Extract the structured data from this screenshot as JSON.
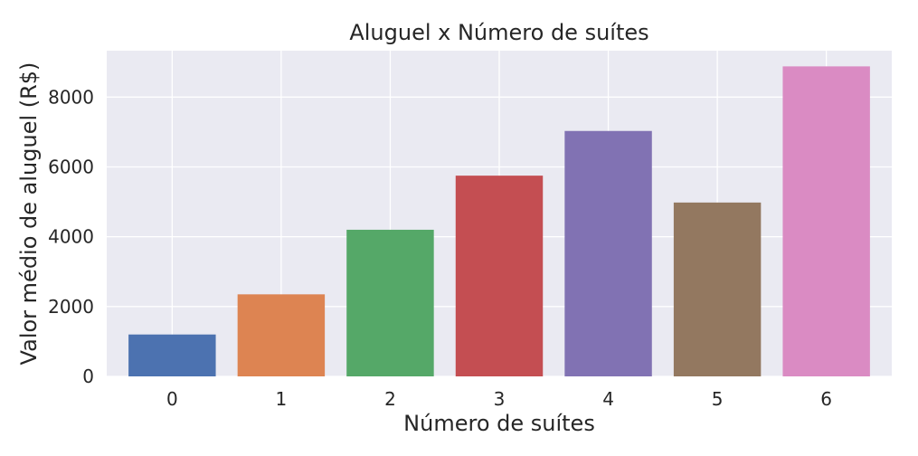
{
  "chart_data": {
    "type": "bar",
    "title": "Aluguel x Número de suítes",
    "xlabel": "Número de suítes",
    "ylabel": "Valor médio de aluguel (R$)",
    "categories": [
      "0",
      "1",
      "2",
      "3",
      "4",
      "5",
      "6"
    ],
    "values": [
      1200,
      2350,
      4200,
      5750,
      7030,
      4980,
      8880
    ],
    "colors": [
      "#4c72b0",
      "#dd8452",
      "#55a868",
      "#c44e52",
      "#8172b3",
      "#937860",
      "#da8bc3"
    ],
    "yticks": [
      0,
      2000,
      4000,
      6000,
      8000
    ],
    "ylim": [
      0,
      9330
    ],
    "grid": true,
    "plot_background": "#eaeaf2"
  }
}
